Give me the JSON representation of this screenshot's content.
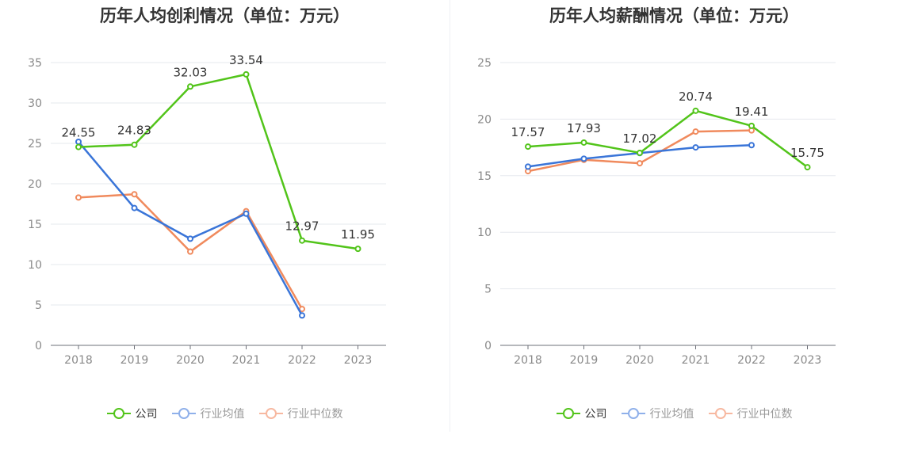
{
  "chart_data": [
    {
      "type": "line",
      "title": "历年人均创利情况（单位：万元）",
      "categories": [
        "2018",
        "2019",
        "2020",
        "2021",
        "2022",
        "2023"
      ],
      "ylim": [
        0,
        35
      ],
      "yticks": [
        0,
        5,
        10,
        15,
        20,
        25,
        30,
        35
      ],
      "grid": true,
      "legend_position": "bottom",
      "series": [
        {
          "name": "公司",
          "color": "#52c41a",
          "values": [
            24.55,
            24.83,
            32.03,
            33.54,
            12.97,
            11.95
          ],
          "labels": [
            "24.55",
            "24.83",
            "32.03",
            "33.54",
            "12.97",
            "11.95"
          ]
        },
        {
          "name": "行业均值",
          "color": "#3a75d8",
          "values": [
            25.2,
            17.0,
            13.2,
            16.3,
            3.7,
            null
          ]
        },
        {
          "name": "行业中位数",
          "color": "#f08a5d",
          "values": [
            18.3,
            18.7,
            11.6,
            16.6,
            4.5,
            null
          ]
        }
      ]
    },
    {
      "type": "line",
      "title": "历年人均薪酬情况（单位：万元）",
      "categories": [
        "2018",
        "2019",
        "2020",
        "2021",
        "2022",
        "2023"
      ],
      "ylim": [
        0,
        25
      ],
      "yticks": [
        0,
        5,
        10,
        15,
        20,
        25
      ],
      "grid": true,
      "legend_position": "bottom",
      "series": [
        {
          "name": "公司",
          "color": "#52c41a",
          "values": [
            17.57,
            17.93,
            17.02,
            20.74,
            19.41,
            15.75
          ],
          "labels": [
            "17.57",
            "17.93",
            "17.02",
            "20.74",
            "19.41",
            "15.75"
          ]
        },
        {
          "name": "行业均值",
          "color": "#3a75d8",
          "values": [
            15.8,
            16.5,
            17.0,
            17.5,
            17.7,
            null
          ]
        },
        {
          "name": "行业中位数",
          "color": "#f08a5d",
          "values": [
            15.4,
            16.4,
            16.1,
            18.9,
            19.0,
            null
          ]
        }
      ]
    }
  ],
  "legend": {
    "items": [
      {
        "label": "公司",
        "color": "#52c41a",
        "dot_color": "#52c41a",
        "text_color": "#333333"
      },
      {
        "label": "行业均值",
        "color": "#8fb0ea",
        "dot_color": "#8fb0ea",
        "text_color": "#999999"
      },
      {
        "label": "行业中位数",
        "color": "#f7b8a0",
        "dot_color": "#f7b8a0",
        "text_color": "#999999"
      }
    ]
  }
}
